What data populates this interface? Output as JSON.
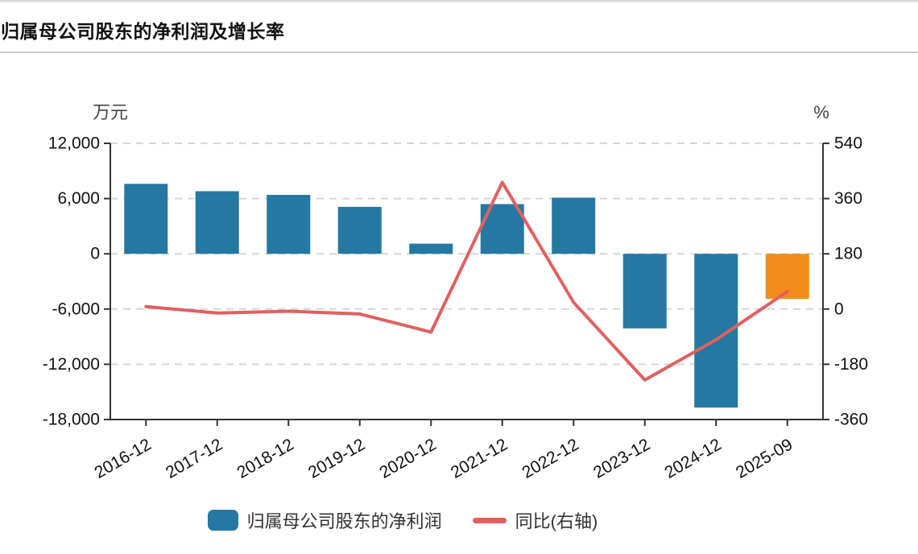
{
  "header": {
    "title": "归属母公司股东的净利润及增长率"
  },
  "chart_data": {
    "type": "bar+line combo",
    "categories": [
      "2016-12",
      "2017-12",
      "2018-12",
      "2019-12",
      "2020-12",
      "2021-12",
      "2022-12",
      "2023-12",
      "2024-12",
      "2025-09"
    ],
    "series": [
      {
        "name": "归属母公司股东的净利润",
        "type": "bar",
        "axis": "left",
        "unit": "万元",
        "values": [
          7600,
          6800,
          6400,
          5100,
          1100,
          5400,
          6100,
          -8100,
          -16700,
          -4900
        ],
        "bar_colors": [
          "#2578a1",
          "#2578a1",
          "#2578a1",
          "#2578a1",
          "#2578a1",
          "#2578a1",
          "#2578a1",
          "#2578a1",
          "#2578a1",
          "#f28c1a"
        ]
      },
      {
        "name": "同比(右轴)",
        "type": "line",
        "axis": "right",
        "unit": "%",
        "values": [
          8,
          -13,
          -7,
          -16,
          -75,
          413,
          22,
          -231,
          -100,
          57
        ],
        "color": "#e06060"
      }
    ],
    "left_axis": {
      "name": "万元",
      "min": -18000,
      "max": 12000,
      "step": 6000,
      "tick_labels": [
        "12,000",
        "6,000",
        "0",
        "-6,000",
        "-12,000",
        "-18,000"
      ]
    },
    "right_axis": {
      "name": "%",
      "min": -360,
      "max": 540,
      "step": 180,
      "tick_labels": [
        "540",
        "360",
        "180",
        "0",
        "-180",
        "-360"
      ]
    },
    "grid": true,
    "gridline_style": "dashed",
    "legend_position": "bottom"
  },
  "legend": {
    "items": [
      {
        "label": "归属母公司股东的净利润",
        "type": "bar",
        "color": "#2578a1"
      },
      {
        "label": "同比(右轴)",
        "type": "line",
        "color": "#e06060"
      }
    ]
  },
  "colors": {
    "bar_blue": "#2578a1",
    "bar_orange": "#f28c1a",
    "line_red": "#e06060",
    "axis": "#333333",
    "tick_text": "#111111",
    "unit_text": "#444444",
    "gridline": "#d6d6d6"
  }
}
